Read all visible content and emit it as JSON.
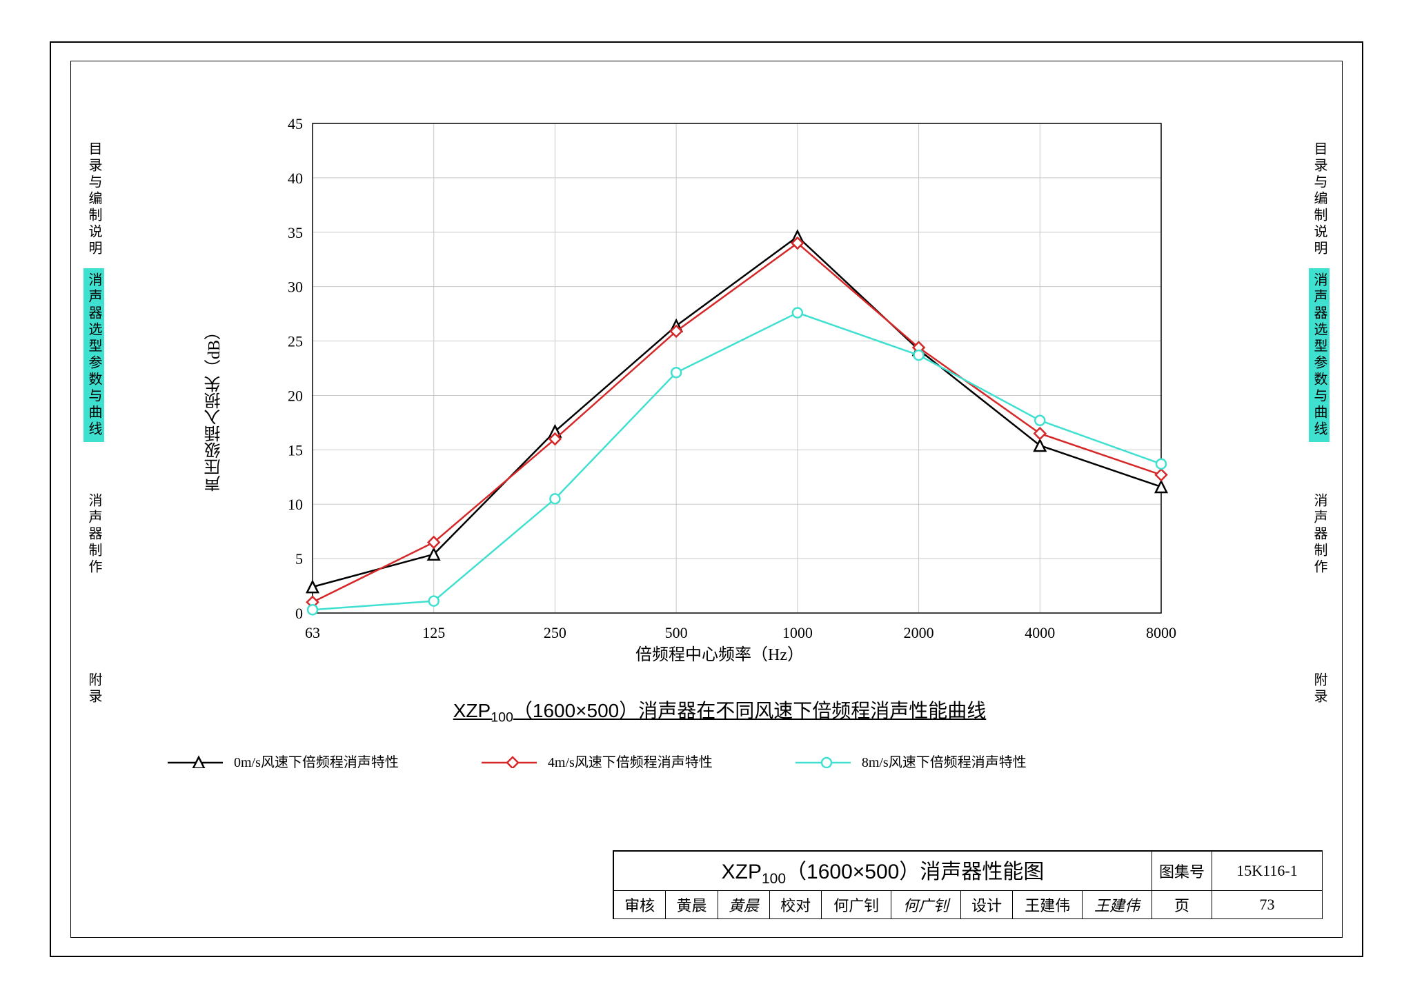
{
  "side_tabs": {
    "t1": "目录与编制说明",
    "t2": "消声器选型参数与曲线",
    "t3": "消声器制作",
    "t4": "附录"
  },
  "chart": {
    "type": "line",
    "y_label": "声压级插入损失（dB）",
    "x_label": "倍频程中心频率（Hz）",
    "title_prefix": "XZP",
    "title_sub": "100",
    "title_rest": "（1600×500）消声器在不同风速下倍频程消声性能曲线",
    "x_categories": [
      "63",
      "125",
      "250",
      "500",
      "1000",
      "2000",
      "4000",
      "8000"
    ],
    "ylim": [
      0,
      45
    ],
    "ytick_step": 5,
    "grid_color": "#c8c8c8",
    "background": "#ffffff",
    "axis_color": "#000000",
    "tick_fontsize": 22,
    "label_fontsize": 24,
    "title_fontsize": 28,
    "series": [
      {
        "name": "0m/s风速下倍频程消声特性",
        "color": "#000000",
        "marker": "triangle",
        "values": [
          2.4,
          5.4,
          16.7,
          26.4,
          34.6,
          24.2,
          15.4,
          11.6
        ]
      },
      {
        "name": "4m/s风速下倍频程消声特性",
        "color": "#d62728",
        "marker": "diamond",
        "values": [
          1.0,
          6.5,
          16.0,
          25.9,
          34.0,
          24.4,
          16.5,
          12.7
        ]
      },
      {
        "name": "8m/s风速下倍频程消声特性",
        "color": "#40e0d0",
        "marker": "circle",
        "values": [
          0.3,
          1.1,
          10.5,
          22.1,
          27.6,
          23.7,
          17.7,
          13.7
        ]
      }
    ]
  },
  "title_block": {
    "main_prefix": "XZP",
    "main_sub": "100",
    "main_rest": "（1600×500）消声器性能图",
    "drawing_no_label": "图集号",
    "drawing_no": "15K116-1",
    "review_label": "审核",
    "review_name": "黄晨",
    "review_sig": "黄晨",
    "check_label": "校对",
    "check_name": "何广钊",
    "check_sig": "何广钊",
    "design_label": "设计",
    "design_name": "王建伟",
    "design_sig": "王建伟",
    "page_label": "页",
    "page_no": "73"
  }
}
